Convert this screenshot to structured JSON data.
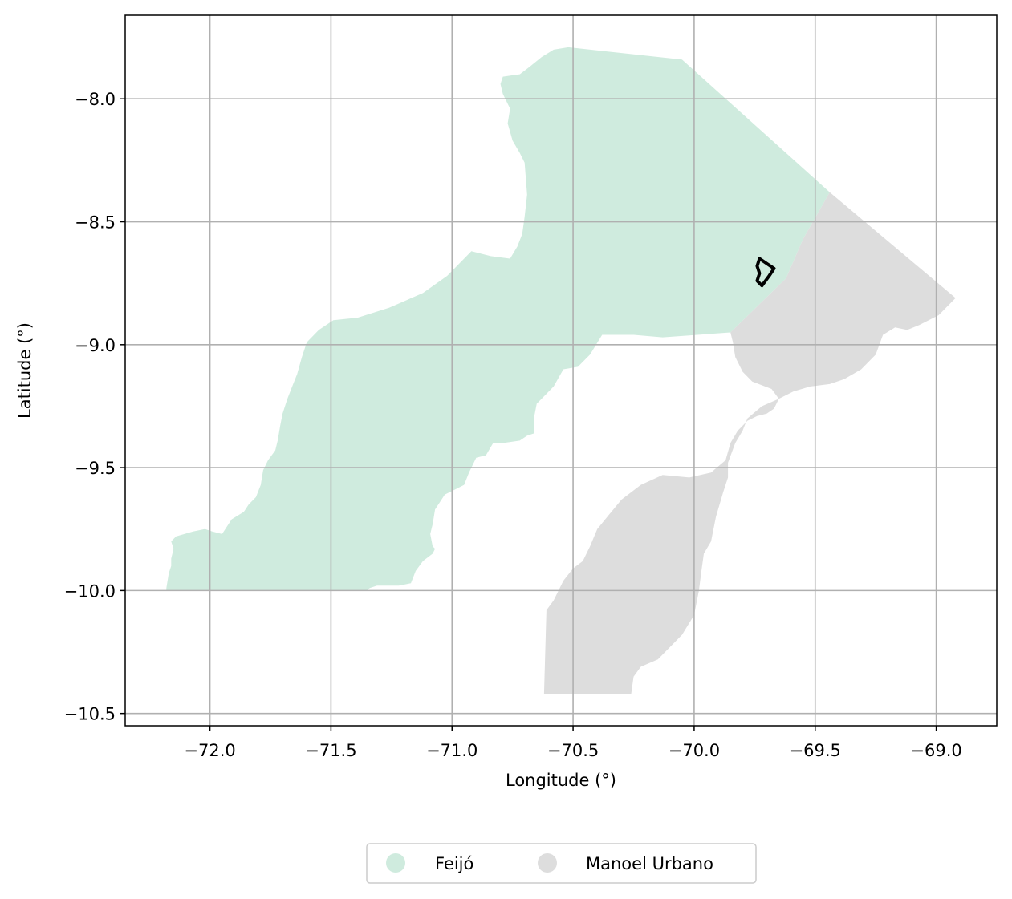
{
  "chart_data": {
    "type": "map",
    "xlabel": "Longitude (°)",
    "ylabel": "Latitude (°)",
    "xlim": [
      -72.35,
      -68.75
    ],
    "ylim": [
      -10.55,
      -7.66
    ],
    "x_ticks": [
      {
        "value": -72.0,
        "label": "−72.0"
      },
      {
        "value": -71.5,
        "label": "−71.5"
      },
      {
        "value": -71.0,
        "label": "−71.0"
      },
      {
        "value": -70.5,
        "label": "−70.5"
      },
      {
        "value": -70.0,
        "label": "−70.0"
      },
      {
        "value": -69.5,
        "label": "−69.5"
      },
      {
        "value": -69.0,
        "label": "−69.0"
      }
    ],
    "y_ticks": [
      {
        "value": -8.0,
        "label": "−8.0"
      },
      {
        "value": -8.5,
        "label": "−8.5"
      },
      {
        "value": -9.0,
        "label": "−9.0"
      },
      {
        "value": -9.5,
        "label": "−9.5"
      },
      {
        "value": -10.0,
        "label": "−10.0"
      },
      {
        "value": -10.5,
        "label": "−10.5"
      }
    ],
    "grid": true,
    "legend_position": "bottom-center",
    "regions": [
      {
        "name": "Feijó",
        "color": "#cfebde",
        "polygon": [
          [
            -70.52,
            -7.79
          ],
          [
            -70.05,
            -7.84
          ],
          [
            -69.44,
            -8.38
          ],
          [
            -69.55,
            -8.57
          ],
          [
            -69.62,
            -8.73
          ],
          [
            -69.85,
            -8.95
          ],
          [
            -70.13,
            -8.97
          ],
          [
            -70.25,
            -8.96
          ],
          [
            -70.38,
            -8.96
          ],
          [
            -70.43,
            -9.04
          ],
          [
            -70.48,
            -9.09
          ],
          [
            -70.54,
            -9.1
          ],
          [
            -70.58,
            -9.17
          ],
          [
            -70.61,
            -9.2
          ],
          [
            -70.65,
            -9.24
          ],
          [
            -70.66,
            -9.29
          ],
          [
            -70.66,
            -9.36
          ],
          [
            -70.69,
            -9.37
          ],
          [
            -70.72,
            -9.39
          ],
          [
            -70.79,
            -9.4
          ],
          [
            -70.83,
            -9.4
          ],
          [
            -70.86,
            -9.45
          ],
          [
            -70.9,
            -9.46
          ],
          [
            -70.93,
            -9.52
          ],
          [
            -70.95,
            -9.57
          ],
          [
            -70.99,
            -9.59
          ],
          [
            -71.03,
            -9.61
          ],
          [
            -71.05,
            -9.64
          ],
          [
            -71.07,
            -9.67
          ],
          [
            -71.08,
            -9.73
          ],
          [
            -71.09,
            -9.77
          ],
          [
            -71.08,
            -9.82
          ],
          [
            -71.07,
            -9.83
          ],
          [
            -71.08,
            -9.85
          ],
          [
            -71.12,
            -9.88
          ],
          [
            -71.15,
            -9.92
          ],
          [
            -71.17,
            -9.97
          ],
          [
            -71.22,
            -9.98
          ],
          [
            -71.26,
            -9.98
          ],
          [
            -71.31,
            -9.98
          ],
          [
            -71.34,
            -9.99
          ],
          [
            -71.35,
            -10.0
          ],
          [
            -72.18,
            -10.0
          ],
          [
            -72.18,
            -9.99
          ],
          [
            -72.17,
            -9.93
          ],
          [
            -72.16,
            -9.9
          ],
          [
            -72.16,
            -9.87
          ],
          [
            -72.15,
            -9.83
          ],
          [
            -72.16,
            -9.8
          ],
          [
            -72.14,
            -9.78
          ],
          [
            -72.07,
            -9.76
          ],
          [
            -72.02,
            -9.75
          ],
          [
            -71.99,
            -9.76
          ],
          [
            -71.95,
            -9.77
          ],
          [
            -71.91,
            -9.71
          ],
          [
            -71.86,
            -9.68
          ],
          [
            -71.84,
            -9.65
          ],
          [
            -71.81,
            -9.62
          ],
          [
            -71.79,
            -9.57
          ],
          [
            -71.78,
            -9.51
          ],
          [
            -71.76,
            -9.47
          ],
          [
            -71.73,
            -9.43
          ],
          [
            -71.72,
            -9.39
          ],
          [
            -71.71,
            -9.33
          ],
          [
            -71.7,
            -9.28
          ],
          [
            -71.68,
            -9.22
          ],
          [
            -71.66,
            -9.17
          ],
          [
            -71.64,
            -9.12
          ],
          [
            -71.62,
            -9.05
          ],
          [
            -71.6,
            -8.99
          ],
          [
            -71.55,
            -8.94
          ],
          [
            -71.49,
            -8.9
          ],
          [
            -71.39,
            -8.89
          ],
          [
            -71.26,
            -8.85
          ],
          [
            -71.12,
            -8.79
          ],
          [
            -71.02,
            -8.72
          ],
          [
            -70.92,
            -8.62
          ],
          [
            -70.84,
            -8.64
          ],
          [
            -70.76,
            -8.65
          ],
          [
            -70.73,
            -8.6
          ],
          [
            -70.71,
            -8.55
          ],
          [
            -70.7,
            -8.48
          ],
          [
            -70.69,
            -8.39
          ],
          [
            -70.7,
            -8.26
          ],
          [
            -70.72,
            -8.22
          ],
          [
            -70.75,
            -8.17
          ],
          [
            -70.77,
            -8.1
          ],
          [
            -70.76,
            -8.04
          ],
          [
            -70.79,
            -7.98
          ],
          [
            -70.8,
            -7.94
          ],
          [
            -70.79,
            -7.91
          ],
          [
            -70.72,
            -7.9
          ],
          [
            -70.68,
            -7.87
          ],
          [
            -70.63,
            -7.83
          ],
          [
            -70.58,
            -7.8
          ],
          [
            -70.52,
            -7.79
          ]
        ]
      },
      {
        "name": "Manoel Urbano",
        "color": "#dddddd",
        "polygon": [
          [
            -69.44,
            -8.38
          ],
          [
            -68.92,
            -8.81
          ],
          [
            -68.99,
            -8.88
          ],
          [
            -69.07,
            -8.92
          ],
          [
            -69.12,
            -8.94
          ],
          [
            -69.17,
            -8.93
          ],
          [
            -69.22,
            -8.96
          ],
          [
            -69.25,
            -9.04
          ],
          [
            -69.31,
            -9.1
          ],
          [
            -69.38,
            -9.14
          ],
          [
            -69.44,
            -9.16
          ],
          [
            -69.52,
            -9.17
          ],
          [
            -69.59,
            -9.19
          ],
          [
            -69.65,
            -9.22
          ],
          [
            -69.72,
            -9.25
          ],
          [
            -69.78,
            -9.3
          ],
          [
            -69.8,
            -9.35
          ],
          [
            -69.83,
            -9.4
          ],
          [
            -69.86,
            -9.48
          ],
          [
            -69.86,
            -9.54
          ],
          [
            -69.88,
            -9.6
          ],
          [
            -69.91,
            -9.7
          ],
          [
            -69.93,
            -9.8
          ],
          [
            -69.96,
            -9.85
          ],
          [
            -69.97,
            -9.92
          ],
          [
            -69.98,
            -10.0
          ],
          [
            -70.0,
            -10.1
          ],
          [
            -70.05,
            -10.18
          ],
          [
            -70.1,
            -10.23
          ],
          [
            -70.15,
            -10.28
          ],
          [
            -70.22,
            -10.31
          ],
          [
            -70.25,
            -10.35
          ],
          [
            -70.26,
            -10.42
          ],
          [
            -70.62,
            -10.42
          ],
          [
            -70.61,
            -10.08
          ],
          [
            -70.58,
            -10.04
          ],
          [
            -70.54,
            -9.96
          ],
          [
            -70.5,
            -9.91
          ],
          [
            -70.46,
            -9.88
          ],
          [
            -70.43,
            -9.82
          ],
          [
            -70.4,
            -9.75
          ],
          [
            -70.35,
            -9.69
          ],
          [
            -70.3,
            -9.63
          ],
          [
            -70.22,
            -9.57
          ],
          [
            -70.13,
            -9.53
          ],
          [
            -70.02,
            -9.54
          ],
          [
            -69.93,
            -9.52
          ],
          [
            -69.87,
            -9.47
          ],
          [
            -69.85,
            -9.4
          ],
          [
            -69.82,
            -9.35
          ],
          [
            -69.78,
            -9.31
          ],
          [
            -69.74,
            -9.29
          ],
          [
            -69.7,
            -9.28
          ],
          [
            -69.67,
            -9.26
          ],
          [
            -69.65,
            -9.22
          ],
          [
            -69.68,
            -9.18
          ],
          [
            -69.76,
            -9.15
          ],
          [
            -69.8,
            -9.11
          ],
          [
            -69.83,
            -9.05
          ],
          [
            -69.84,
            -8.99
          ],
          [
            -69.85,
            -8.95
          ],
          [
            -69.62,
            -8.73
          ],
          [
            -69.55,
            -8.57
          ],
          [
            -69.44,
            -8.38
          ]
        ]
      }
    ],
    "outline": {
      "color": "#000000",
      "polygon": [
        [
          -69.73,
          -8.65
        ],
        [
          -69.7,
          -8.67
        ],
        [
          -69.67,
          -8.69
        ],
        [
          -69.69,
          -8.72
        ],
        [
          -69.72,
          -8.76
        ],
        [
          -69.74,
          -8.74
        ],
        [
          -69.73,
          -8.71
        ],
        [
          -69.74,
          -8.68
        ],
        [
          -69.73,
          -8.65
        ]
      ]
    },
    "legend": [
      {
        "label": "Feijó",
        "color": "#cfebde"
      },
      {
        "label": "Manoel Urbano",
        "color": "#dddddd"
      }
    ]
  }
}
